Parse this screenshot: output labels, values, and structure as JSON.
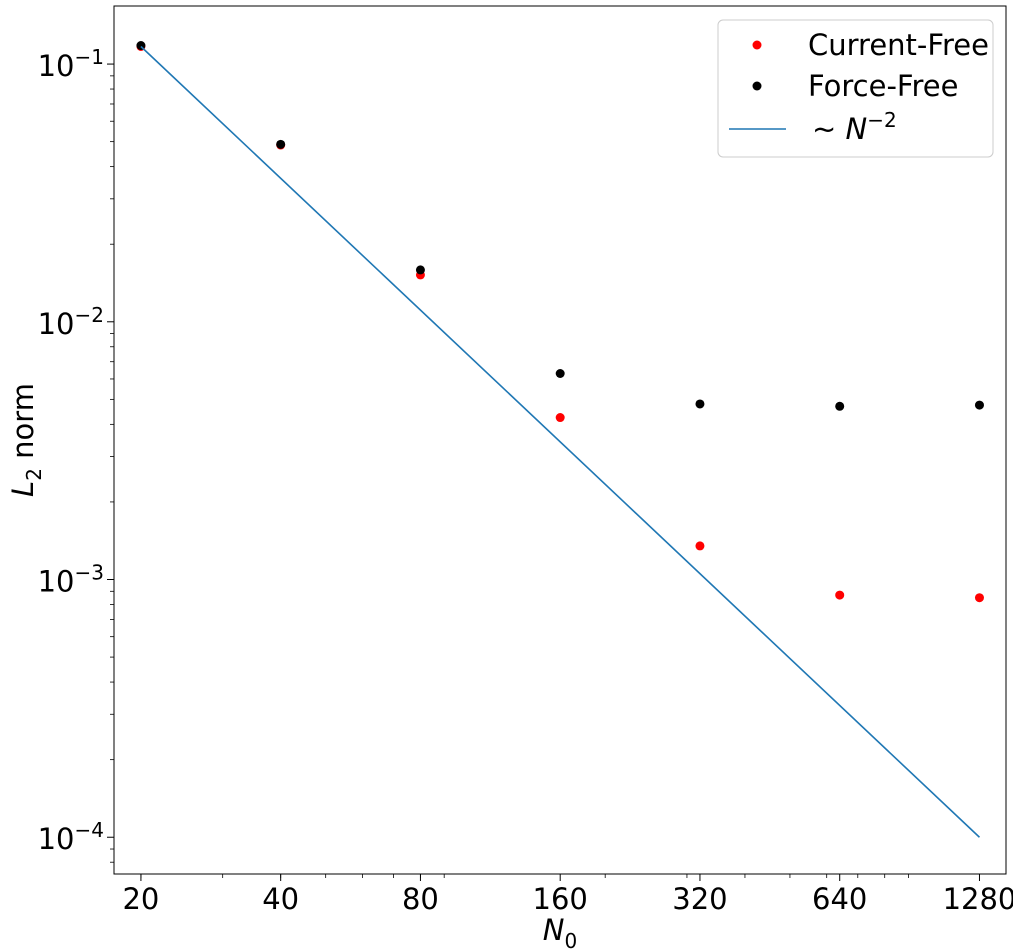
{
  "chart_data": {
    "type": "scatter",
    "xlabel": "N",
    "xlabel_sub": "0",
    "ylabel": "L",
    "ylabel_sub": "2",
    "ylabel_rest": " norm",
    "x_scale": "log",
    "y_scale": "log",
    "xlim": [
      17.5,
      1460
    ],
    "ylim": [
      7.2e-05,
      0.168
    ],
    "x_ticks": [
      20,
      40,
      80,
      160,
      320,
      640,
      1280
    ],
    "x_tick_labels": [
      "20",
      "40",
      "80",
      "160",
      "320",
      "640",
      "1280"
    ],
    "y_ticks": [
      {
        "value": 0.1,
        "base": "10",
        "exp": "−1"
      },
      {
        "value": 0.01,
        "base": "10",
        "exp": "−2"
      },
      {
        "value": 0.001,
        "base": "10",
        "exp": "−3"
      },
      {
        "value": 0.0001,
        "base": "10",
        "exp": "−4"
      }
    ],
    "grid": false,
    "legend_position": "top-right",
    "series": [
      {
        "name": "Current-Free",
        "kind": "scatter",
        "color": "#ff0000",
        "x": [
          20,
          40,
          80,
          160,
          320,
          640,
          1280
        ],
        "y": [
          0.117,
          0.0485,
          0.0152,
          0.00425,
          0.00135,
          0.00087,
          0.00085
        ]
      },
      {
        "name": "Force-Free",
        "kind": "scatter",
        "color": "#000000",
        "x": [
          20,
          40,
          80,
          160,
          320,
          640,
          1280
        ],
        "y": [
          0.118,
          0.0488,
          0.0159,
          0.0063,
          0.0048,
          0.0047,
          0.00475
        ]
      },
      {
        "name": "~ N",
        "name_exp": "−2",
        "kind": "line",
        "color": "#1f77b4",
        "x": [
          20,
          1280
        ],
        "y": [
          0.117,
          0.0001
        ]
      }
    ]
  }
}
